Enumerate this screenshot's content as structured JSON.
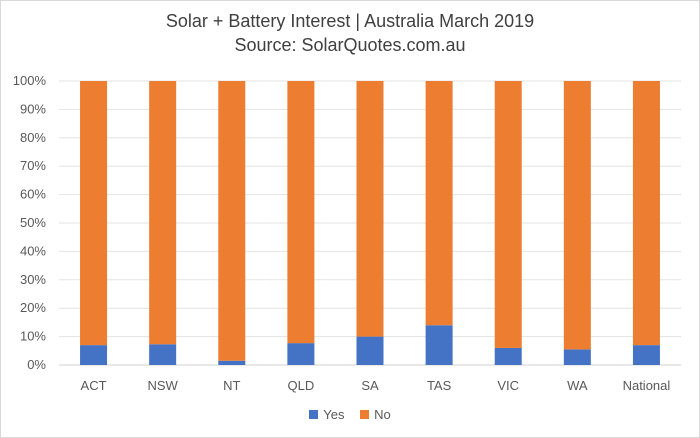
{
  "chart_data": {
    "type": "bar",
    "stacked": true,
    "percent": true,
    "title": "Solar + Battery Interest | Australia March 2019",
    "subtitle": "Source: SolarQuotes.com.au",
    "categories": [
      "ACT",
      "NSW",
      "NT",
      "QLD",
      "SA",
      "TAS",
      "VIC",
      "WA",
      "National"
    ],
    "series": [
      {
        "name": "Yes",
        "color": "#4472c4",
        "values": [
          7,
          7.3,
          1.5,
          7.7,
          10,
          14,
          6,
          5.5,
          7
        ]
      },
      {
        "name": "No",
        "color": "#ed7d31",
        "values": [
          93,
          92.7,
          98.5,
          92.3,
          90,
          86,
          94,
          94.5,
          93
        ]
      }
    ],
    "ylim": [
      0,
      100
    ],
    "yticks": [
      "0%",
      "10%",
      "20%",
      "30%",
      "40%",
      "50%",
      "60%",
      "70%",
      "80%",
      "90%",
      "100%"
    ],
    "grid": true,
    "legend_position": "bottom"
  }
}
